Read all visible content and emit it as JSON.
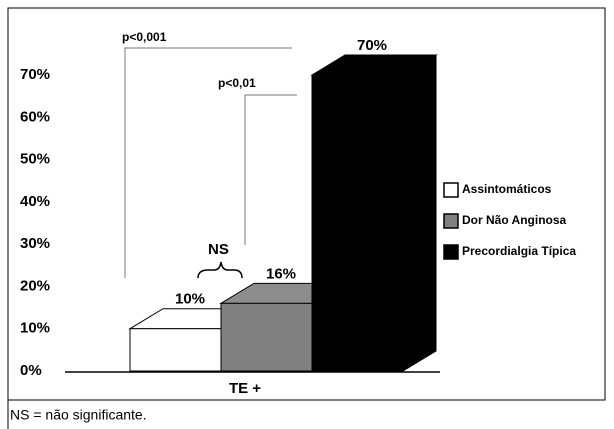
{
  "chart_data": {
    "type": "bar3d",
    "categories": [
      "TE +"
    ],
    "series": [
      {
        "name": "Assintomáticos",
        "color": "#ffffff",
        "values": [
          10
        ],
        "value_labels": [
          "10%"
        ]
      },
      {
        "name": "Dor Não Anginosa",
        "color": "#808080",
        "values": [
          16
        ],
        "value_labels": [
          "16%"
        ]
      },
      {
        "name": "Precordialgia Típica",
        "color": "#000000",
        "values": [
          70
        ],
        "value_labels": [
          "70%"
        ]
      }
    ],
    "ylim": [
      0,
      70
    ],
    "yticks": [
      {
        "value": 0,
        "label": "0%"
      },
      {
        "value": 10,
        "label": "10%"
      },
      {
        "value": 20,
        "label": "20%"
      },
      {
        "value": 30,
        "label": "30%"
      },
      {
        "value": 40,
        "label": "40%"
      },
      {
        "value": 50,
        "label": "50%"
      },
      {
        "value": 60,
        "label": "60%"
      },
      {
        "value": 70,
        "label": "70%"
      }
    ],
    "annotations": [
      "p<0,001",
      "p<0,01",
      "NS"
    ],
    "footnote": "NS = não significante."
  }
}
